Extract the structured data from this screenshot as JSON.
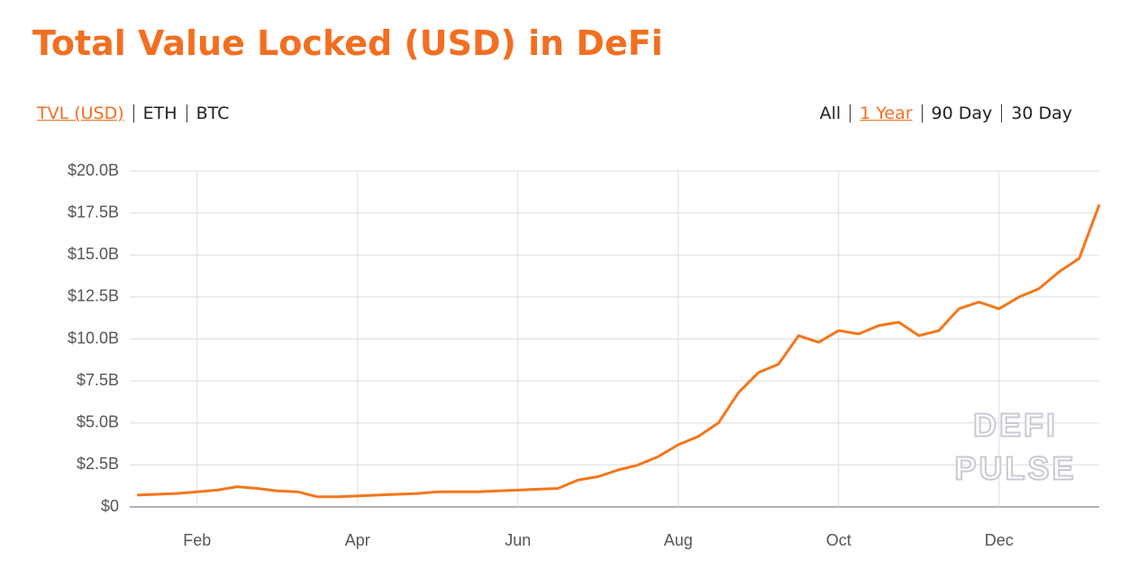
{
  "chart_data": {
    "type": "line",
    "title": "Total Value Locked (USD) in DeFi",
    "categories": [
      null,
      null,
      null,
      "Feb",
      null,
      null,
      null,
      null,
      null,
      null,
      null,
      "Apr",
      null,
      null,
      null,
      null,
      null,
      null,
      null,
      "Jun",
      null,
      null,
      null,
      null,
      null,
      null,
      null,
      "Aug",
      null,
      null,
      null,
      null,
      null,
      null,
      null,
      "Oct",
      null,
      null,
      null,
      null,
      null,
      null,
      null,
      "Dec",
      null,
      null,
      null,
      null,
      null
    ],
    "values": [
      0.7,
      0.75,
      0.8,
      0.9,
      1.0,
      1.2,
      1.1,
      0.95,
      0.9,
      0.6,
      0.6,
      0.65,
      0.7,
      0.75,
      0.8,
      0.9,
      0.9,
      0.9,
      0.95,
      1.0,
      1.05,
      1.1,
      1.6,
      1.8,
      2.2,
      2.5,
      3.0,
      3.7,
      4.2,
      5.0,
      6.8,
      8.0,
      8.5,
      10.2,
      9.8,
      10.5,
      10.3,
      10.8,
      11.0,
      10.2,
      10.5,
      11.8,
      12.2,
      11.8,
      12.5,
      13.0,
      14.0,
      14.8,
      18.0
    ],
    "color": "#f5761a",
    "ylim": [
      0,
      20
    ],
    "yticks": [
      {
        "value": 0,
        "label": "$0"
      },
      {
        "value": 2.5,
        "label": "$2.5B"
      },
      {
        "value": 5,
        "label": "$5.0B"
      },
      {
        "value": 7.5,
        "label": "$7.5B"
      },
      {
        "value": 10,
        "label": "$10.0B"
      },
      {
        "value": 12.5,
        "label": "$12.5B"
      },
      {
        "value": 15,
        "label": "$15.0B"
      },
      {
        "value": 17.5,
        "label": "$17.5B"
      },
      {
        "value": 20,
        "label": "$20.0B"
      }
    ],
    "grid": true,
    "watermark": [
      "DEFI",
      "PULSE"
    ]
  },
  "controls": {
    "unit_tabs": {
      "items": [
        "TVL (USD)",
        "ETH",
        "BTC"
      ],
      "active": 0
    },
    "range_tabs": {
      "items": [
        "All",
        "1 Year",
        "90 Day",
        "30 Day"
      ],
      "active": 1
    }
  }
}
